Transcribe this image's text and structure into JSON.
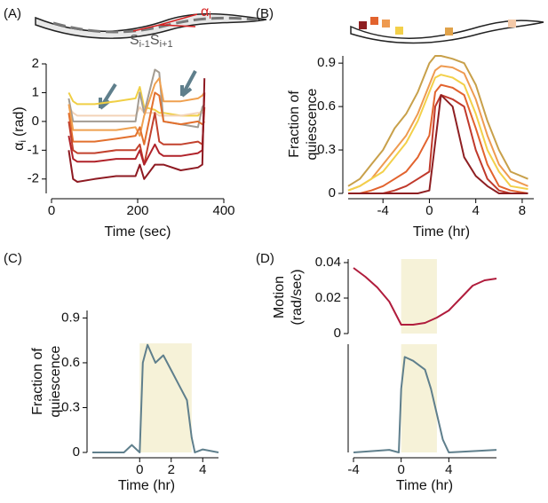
{
  "chart_data": [
    {
      "type": "line",
      "label": "(A)",
      "y_label": "α",
      "y_label_sub": "i",
      "y_label_unit": "(rad)",
      "x_label": "Time (sec)",
      "xlim": [
        0,
        400
      ],
      "xticks": [
        0,
        200,
        400
      ],
      "ylim": [
        -2.5,
        2
      ],
      "yticks": [
        -2,
        -1,
        0,
        1,
        2
      ],
      "x": [
        40,
        50,
        60,
        100,
        150,
        195,
        205,
        215,
        240,
        250,
        260,
        300,
        340,
        350,
        355
      ],
      "series": [
        {
          "color": "#f0cf45",
          "values": [
            1.0,
            0.7,
            0.6,
            0.6,
            0.7,
            0.8,
            1.2,
            0.5,
            0.4,
            0.3,
            0.3,
            0.2,
            0.2,
            0.4,
            0.5
          ]
        },
        {
          "color": "#f3d3b8",
          "values": [
            0.5,
            0.3,
            0.2,
            0.2,
            0.2,
            0.2,
            0.5,
            0.3,
            0.3,
            0.2,
            0.2,
            0.2,
            0.3,
            0.3,
            0.3
          ]
        },
        {
          "color": "#a39c92",
          "values": [
            0.8,
            0,
            0,
            0,
            0,
            0,
            1.0,
            0.3,
            1.8,
            1.7,
            0,
            -0.1,
            -0.2,
            0.5,
            0.6
          ]
        },
        {
          "color": "#efa04f",
          "values": [
            0.6,
            -0.3,
            -0.3,
            -0.3,
            -0.3,
            -0.2,
            -0.5,
            0.2,
            1.3,
            1.5,
            0.7,
            0.7,
            0.8,
            0.9,
            1.0
          ]
        },
        {
          "color": "#e2702e",
          "values": [
            0.3,
            -0.7,
            -0.7,
            -0.7,
            -0.6,
            -0.5,
            -0.2,
            -0.8,
            1.0,
            0.9,
            0,
            -0.1,
            0,
            -0.1,
            0
          ]
        },
        {
          "color": "#c2412d",
          "values": [
            0,
            -1.0,
            -1.1,
            -1.1,
            -1.0,
            -1.0,
            -0.8,
            -1.5,
            0.3,
            -0.7,
            -0.8,
            -0.8,
            -0.7,
            -0.8,
            0.5
          ]
        },
        {
          "color": "#b0222a",
          "values": [
            -0.5,
            -1.3,
            -1.4,
            -1.4,
            -1.3,
            -1.3,
            -1.0,
            -1.5,
            -0.8,
            -1.1,
            -1.2,
            -1.2,
            -1.1,
            -1.0,
            1.0
          ]
        },
        {
          "color": "#8e1a22",
          "values": [
            -1.0,
            -2.0,
            -2.1,
            -2.0,
            -1.9,
            -1.9,
            -1.5,
            -2.0,
            -1.5,
            -1.5,
            -1.5,
            -1.7,
            -1.6,
            -1.5,
            1.5
          ]
        }
      ],
      "annotations": [
        "α",
        "i",
        "S",
        "i-1",
        "S",
        "i+1"
      ]
    },
    {
      "type": "line",
      "label": "(B)",
      "y_label": [
        "Fraction of",
        "quiescence"
      ],
      "x_label": "Time (hr)",
      "xlim": [
        -7,
        9
      ],
      "xticks": [
        -4,
        0,
        4,
        8
      ],
      "ylim": [
        0,
        0.95
      ],
      "yticks": [
        0,
        0.3,
        0.6,
        0.9
      ],
      "x": [
        -7,
        -6,
        -5,
        -4,
        -3,
        -2,
        -1,
        0,
        0.5,
        1,
        2,
        3,
        4,
        5,
        6,
        7,
        8.5
      ],
      "series": [
        {
          "color": "#c8a04a",
          "values": [
            0.05,
            0.1,
            0.2,
            0.3,
            0.45,
            0.55,
            0.7,
            0.9,
            0.95,
            0.95,
            0.93,
            0.9,
            0.75,
            0.5,
            0.3,
            0.15,
            0.1
          ]
        },
        {
          "color": "#ee9a50",
          "values": [
            0.02,
            0.05,
            0.1,
            0.2,
            0.3,
            0.4,
            0.55,
            0.75,
            0.85,
            0.88,
            0.87,
            0.83,
            0.65,
            0.4,
            0.2,
            0.1,
            0.05
          ]
        },
        {
          "color": "#f3d04a",
          "values": [
            0.02,
            0.05,
            0.1,
            0.15,
            0.25,
            0.35,
            0.5,
            0.7,
            0.8,
            0.82,
            0.8,
            0.75,
            0.55,
            0.3,
            0.15,
            0.05,
            0.03
          ]
        },
        {
          "color": "#e2632e",
          "values": [
            0,
            0,
            0.02,
            0.05,
            0.1,
            0.15,
            0.25,
            0.4,
            0.7,
            0.75,
            0.73,
            0.68,
            0.45,
            0.2,
            0.05,
            0.02,
            0
          ]
        },
        {
          "color": "#c0392b",
          "values": [
            0,
            0,
            0,
            0,
            0.02,
            0.05,
            0.1,
            0.15,
            0.6,
            0.68,
            0.65,
            0.6,
            0.3,
            0.1,
            0.02,
            0,
            0
          ]
        },
        {
          "color": "#8e1f22",
          "values": [
            0,
            0,
            0,
            0,
            0,
            0,
            0,
            0.02,
            0.35,
            0.68,
            0.6,
            0.25,
            0.12,
            0.05,
            0,
            0,
            0
          ]
        }
      ]
    },
    {
      "type": "line",
      "label": "(C)",
      "y_label": [
        "Fraction of",
        "quiescence"
      ],
      "x_label": "Time (hr)",
      "xlim": [
        -3,
        5
      ],
      "xticks": [
        0,
        2,
        4
      ],
      "ylim": [
        0,
        0.95
      ],
      "yticks": [
        0,
        0.3,
        0.6,
        0.9
      ],
      "shade": [
        0,
        3.3
      ],
      "shade_top": 0.73,
      "x": [
        -3,
        -1,
        -0.5,
        0,
        0.2,
        0.5,
        1,
        1.5,
        2,
        2.5,
        3,
        3.3,
        3.5,
        4,
        5
      ],
      "series": [
        {
          "color": "#5f7f8c",
          "values": [
            0,
            0,
            0.05,
            0,
            0.6,
            0.72,
            0.6,
            0.65,
            0.55,
            0.45,
            0.35,
            0.1,
            0,
            0.02,
            0
          ]
        }
      ]
    },
    {
      "type": "line",
      "label": "(D)",
      "y_label": [
        "Motion",
        "(rad/sec)"
      ],
      "xlim": [
        -4,
        8
      ],
      "ylim": [
        0,
        0.042
      ],
      "yticks": [
        0,
        0.02,
        0.04
      ],
      "shade": [
        0,
        3
      ],
      "x": [
        -4,
        -3,
        -2,
        -1,
        0,
        1,
        2,
        3,
        4,
        5,
        6,
        7,
        8
      ],
      "series": [
        {
          "color": "#b01c3c",
          "values": [
            0.037,
            0.032,
            0.026,
            0.018,
            0.005,
            0.005,
            0.006,
            0.009,
            0.013,
            0.02,
            0.027,
            0.03,
            0.031
          ]
        }
      ]
    },
    {
      "type": "line",
      "x_label": "Time (hr)",
      "xlim": [
        -4,
        8
      ],
      "xticks": [
        -4,
        0,
        4
      ],
      "ylim": [
        0,
        0.85
      ],
      "shade": [
        0,
        3
      ],
      "x": [
        -4,
        -1,
        -0.2,
        0,
        0.3,
        1,
        2,
        2.5,
        3,
        3.5,
        4,
        8
      ],
      "series": [
        {
          "color": "#5f7f8c",
          "values": [
            0,
            0.02,
            0,
            0.5,
            0.75,
            0.72,
            0.65,
            0.5,
            0.3,
            0.1,
            0,
            0.02
          ]
        }
      ]
    }
  ]
}
